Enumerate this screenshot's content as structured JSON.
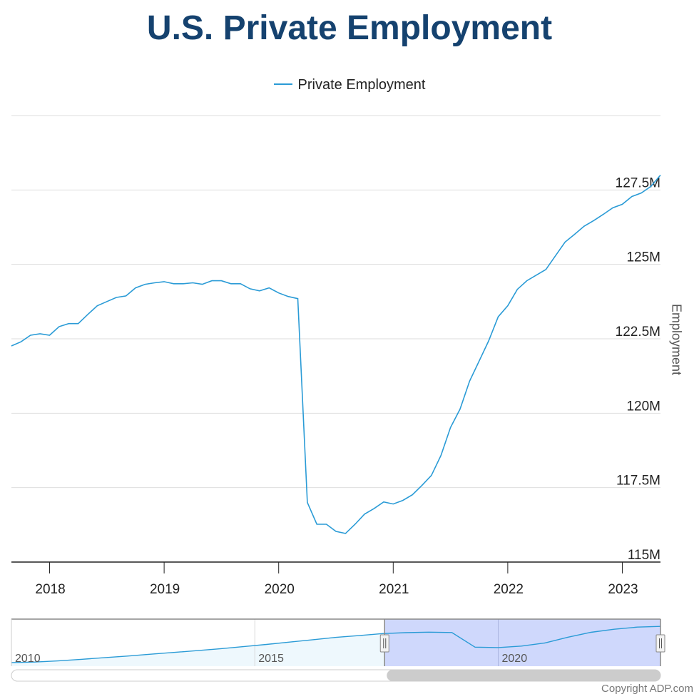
{
  "title": "U.S. Private Employment",
  "copyright": "Copyright ADP.com",
  "colors": {
    "line": "#2a9bd6",
    "title": "#15426f",
    "navigator_mask": "#ccd6fc",
    "navigator_fill": "#eef8fd"
  },
  "chart_data": {
    "type": "line",
    "title": "U.S. Private Employment",
    "xlabel": "",
    "ylabel": "Employment",
    "legend": {
      "position": "top-center",
      "entries": [
        "Private Employment"
      ]
    },
    "grid": true,
    "ylim": [
      115,
      130
    ],
    "xlim": [
      "2017-09",
      "2023-05"
    ],
    "y_ticks": [
      {
        "value": 115,
        "label": "115M"
      },
      {
        "value": 117.5,
        "label": "117.5M"
      },
      {
        "value": 120,
        "label": "120M"
      },
      {
        "value": 122.5,
        "label": "122.5M"
      },
      {
        "value": 125,
        "label": "125M"
      },
      {
        "value": 127.5,
        "label": "127.5M"
      }
    ],
    "x_ticks": [
      "2018",
      "2019",
      "2020",
      "2021",
      "2022",
      "2023"
    ],
    "series": [
      {
        "name": "Private Employment",
        "units": "millions",
        "start": "2017-09",
        "frequency": "monthly",
        "values": [
          122.26,
          122.4,
          122.62,
          122.67,
          122.62,
          122.91,
          123.01,
          123.01,
          123.32,
          123.61,
          123.75,
          123.89,
          123.94,
          124.21,
          124.33,
          124.38,
          124.42,
          124.35,
          124.35,
          124.38,
          124.33,
          124.45,
          124.45,
          124.35,
          124.35,
          124.18,
          124.11,
          124.21,
          124.04,
          123.92,
          123.85,
          117.0,
          116.27,
          116.27,
          116.03,
          115.96,
          116.27,
          116.61,
          116.8,
          117.02,
          116.95,
          117.07,
          117.26,
          117.57,
          117.91,
          118.58,
          119.52,
          120.14,
          121.08,
          121.75,
          122.43,
          123.24,
          123.61,
          124.16,
          124.45,
          124.64,
          124.83,
          125.29,
          125.75,
          126.01,
          126.28,
          126.47,
          126.68,
          126.9,
          127.02,
          127.28,
          127.4,
          127.62,
          128.0
        ]
      }
    ],
    "navigator": {
      "x_labels": [
        "2010",
        "2015",
        "2020"
      ],
      "range_start": "2010-01",
      "range_end": "2023-05",
      "selected_start": "2017-09",
      "selected_end": "2023-05",
      "values": [
        108.0,
        108.3,
        108.9,
        109.8,
        110.7,
        111.6,
        112.6,
        113.6,
        114.6,
        115.6,
        116.8,
        118.0,
        119.3,
        120.6,
        121.9,
        122.9,
        124.0,
        124.5,
        124.8,
        124.6,
        116.5,
        116.3,
        117.1,
        118.8,
        122.0,
        124.7,
        126.4,
        127.6,
        128.0
      ]
    }
  }
}
